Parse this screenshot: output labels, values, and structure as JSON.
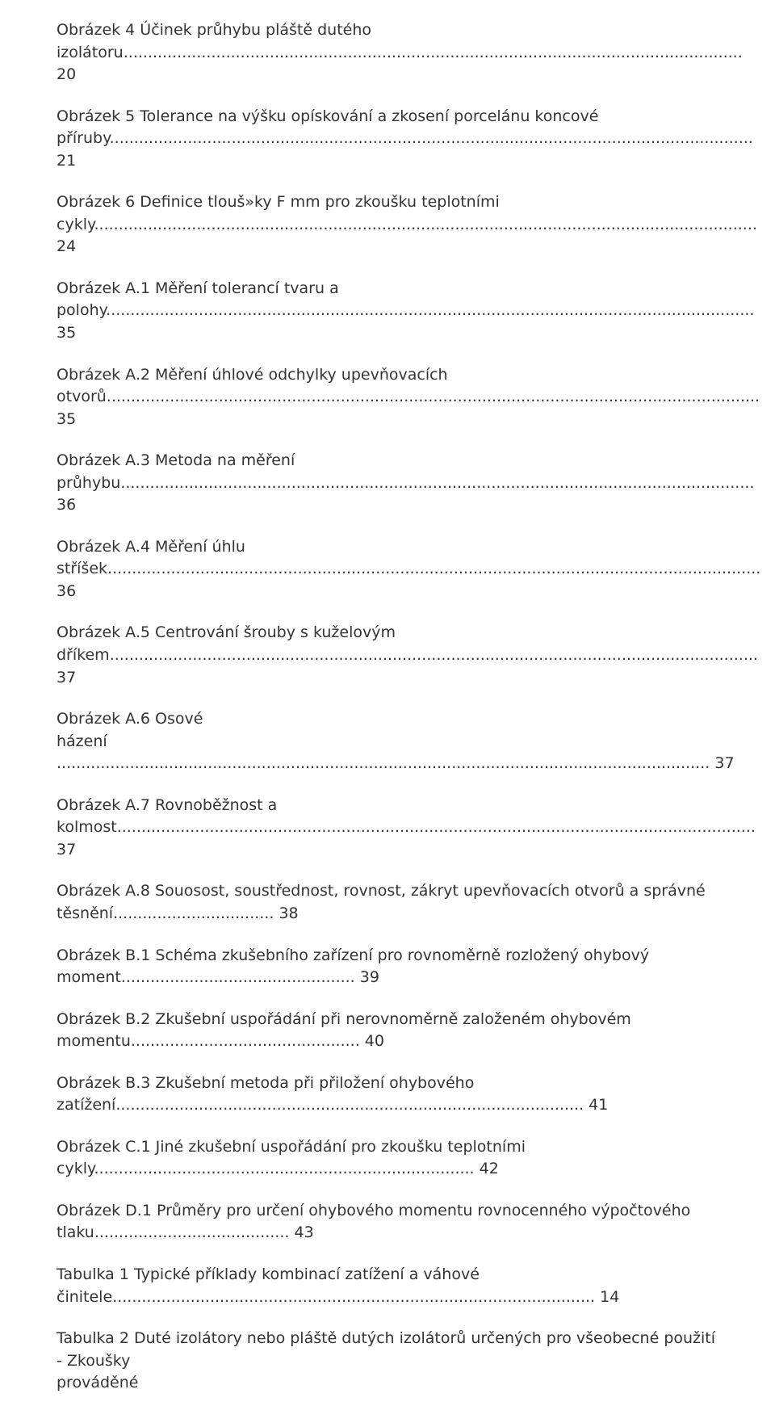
{
  "entries": [
    {
      "title_line1": "Obrázek 4  Účinek průhybu pláště dutého",
      "title_line2": "izolátoru",
      "dots": "...............................................................................................................................",
      "page": "20"
    },
    {
      "title_line1": "Obrázek 5  Tolerance na výšku opískování a zkosení porcelánu koncové",
      "title_line2": "příruby",
      "dots": "....................................................................................................................................",
      "page": "21"
    },
    {
      "title_line1": "Obrázek 6  Definice tlouš»ky F mm pro zkoušku teplotními",
      "title_line2": "cykly",
      "dots": "........................................................................................................................................",
      "page": "24"
    },
    {
      "title_line1": "Obrázek A.1  Měření tolerancí tvaru a",
      "title_line2": "polohy",
      "dots": ".....................................................................................................................................",
      "page": "35"
    },
    {
      "title_line1": "Obrázek A.2  Měření úhlové odchylky upevňovacích",
      "title_line2": "otvorů",
      "dots": "......................................................................................................................................",
      "page": "35"
    },
    {
      "title_line1": "Obrázek A.3  Metoda na měření",
      "title_line2": "průhybu",
      "dots": "..................................................................................................................................",
      "page": "36"
    },
    {
      "title_line1": "Obrázek A.4  Měření úhlu",
      "title_line2": "stříšek",
      "dots": "......................................................................................................................................",
      "page": "36"
    },
    {
      "title_line1": "Obrázek A.5  Centrování šrouby s kuželovým",
      "title_line2": "dříkem",
      "dots": ".....................................................................................................................................",
      "page": "37"
    },
    {
      "title_line1": "Obrázek A.6  Osové",
      "title_line2": "házení",
      "dots": "......................................................................................................................................",
      "page": "37",
      "dots_on_own_line": true
    },
    {
      "title_line1": "Obrázek A.7  Rovnoběžnost a",
      "title_line2": "kolmost",
      "dots": "...................................................................................................................................",
      "page": "37"
    },
    {
      "title_line1": "Obrázek A.8  Souosost, soustřednost, rovnost, zákryt upevňovacích otvorů a správné",
      "title_line2": "těsnění",
      "dots": ".................................",
      "page": "38"
    },
    {
      "title_line1": "Obrázek B.1  Schéma zkušebního zařízení pro rovnoměrně rozložený ohybový",
      "title_line2": "moment",
      "dots": "................................................",
      "page": "39"
    },
    {
      "title_line1": "Obrázek B.2  Zkušební uspořádání při nerovnoměrně založeném ohybovém",
      "title_line2": "momentu",
      "dots": "...............................................",
      "page": "40"
    },
    {
      "title_line1": "Obrázek B.3  Zkušební metoda při přiložení ohybového",
      "title_line2": "zatížení",
      "dots": "................................................................................................",
      "page": "41"
    },
    {
      "title_line1": "Obrázek C.1  Jiné zkušební uspořádání pro zkoušku teplotními",
      "title_line2": "cykly",
      "dots": "..............................................................................",
      "page": "42"
    },
    {
      "title_line1": "Obrázek D.1  Průměry pro určení ohybového momentu rovnocenného výpočtového",
      "title_line2": "tlaku",
      "dots": "........................................",
      "page": "43"
    },
    {
      "title_line1": "Tabulka 1  Typické příklady kombinací zatížení a váhové",
      "title_line2": "činitele",
      "dots": "...................................................................................................",
      "page": "14"
    },
    {
      "title_line1": "Tabulka 2  Duté izolátory nebo pláště dutých izolátorů určených pro všeobecné použití - Zkoušky",
      "title_line2": "prováděné",
      "dots": "",
      "page": "",
      "no_page": true
    }
  ]
}
